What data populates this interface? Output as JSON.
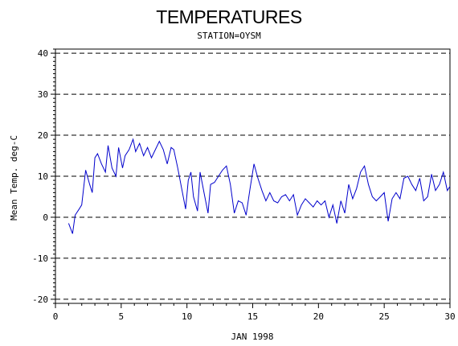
{
  "chart_data": {
    "type": "line",
    "title": "TEMPERATURES",
    "subtitle": "STATION=OYSM",
    "xlabel": "JAN 1998",
    "ylabel": "Mean Temp. deg-C",
    "xlim": [
      0,
      30
    ],
    "ylim": [
      -21,
      41
    ],
    "x_ticks": [
      0,
      5,
      10,
      15,
      20,
      25,
      30
    ],
    "y_ticks": [
      -20,
      -10,
      0,
      10,
      20,
      30,
      40
    ],
    "grid": "horizontal dashed",
    "colors": {
      "line": "#0000cc",
      "grid": "#000000"
    },
    "series": [
      {
        "x": [
          1.0,
          1.3,
          1.5,
          1.8,
          2.0,
          2.3,
          2.6,
          2.8,
          3.0,
          3.2,
          3.5,
          3.8,
          4.0,
          4.3,
          4.6,
          4.8,
          5.1,
          5.3,
          5.6,
          5.9,
          6.1,
          6.4,
          6.7,
          7.0,
          7.3,
          7.6,
          7.9,
          8.2,
          8.5,
          8.8,
          9.0,
          9.3,
          9.6,
          9.9,
          10.1,
          10.3,
          10.5,
          10.8,
          11.0,
          11.3,
          11.6,
          11.8,
          12.1,
          12.4,
          12.7,
          13.0,
          13.3,
          13.6,
          13.9,
          14.2,
          14.5,
          14.8,
          15.1,
          15.4,
          15.7,
          16.0,
          16.3,
          16.6,
          16.9,
          17.2,
          17.5,
          17.8,
          18.1,
          18.4,
          18.7,
          19.0,
          19.3,
          19.6,
          19.9,
          20.2,
          20.5,
          20.8,
          21.1,
          21.4,
          21.7,
          22.0,
          22.3,
          22.6,
          22.9,
          23.2,
          23.5,
          23.8,
          24.1,
          24.4,
          24.7,
          25.0,
          25.3,
          25.6,
          25.9,
          26.2,
          26.5,
          26.8,
          27.1,
          27.4,
          27.7,
          28.0,
          28.3,
          28.6,
          28.9,
          29.2,
          29.5,
          29.8,
          30.0
        ],
        "values": [
          -1.5,
          -4.0,
          0.5,
          2.0,
          3.0,
          11.5,
          8.0,
          6.0,
          14.5,
          15.5,
          13.0,
          11.0,
          17.5,
          12.0,
          10.0,
          17.0,
          12.0,
          15.0,
          16.5,
          19.0,
          16.0,
          18.0,
          15.0,
          17.0,
          14.5,
          16.5,
          18.5,
          16.5,
          13.0,
          17.0,
          16.5,
          12.0,
          7.0,
          2.0,
          9.0,
          11.0,
          5.0,
          1.5,
          11.0,
          6.0,
          1.0,
          8.0,
          8.5,
          10.0,
          11.5,
          12.5,
          8.0,
          1.0,
          4.0,
          3.5,
          0.5,
          7.0,
          13.0,
          9.5,
          6.5,
          4.0,
          6.0,
          4.0,
          3.5,
          5.0,
          5.5,
          4.0,
          5.5,
          0.5,
          3.0,
          4.5,
          3.5,
          2.5,
          4.0,
          3.0,
          4.0,
          0.0,
          3.0,
          -1.5,
          4.0,
          1.0,
          8.0,
          4.5,
          7.0,
          11.0,
          12.5,
          8.0,
          5.0,
          4.0,
          5.0,
          6.0,
          -1.0,
          4.5,
          6.0,
          4.5,
          9.5,
          10.0,
          8.0,
          6.5,
          9.5,
          4.0,
          5.0,
          10.5,
          6.5,
          8.0,
          11.0,
          6.5,
          7.5
        ]
      }
    ]
  }
}
